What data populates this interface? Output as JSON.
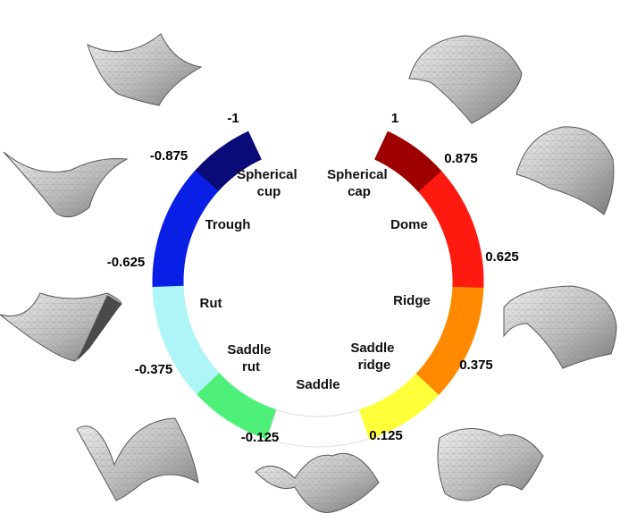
{
  "colors": {
    "spherical_cup": "#0a0a78",
    "trough": "#0a1fe6",
    "rut": "#aef5f7",
    "saddle_rut": "#4ef07a",
    "saddle": "#ffffff",
    "saddle_ridge": "#ffff3a",
    "ridge": "#ff8a00",
    "dome": "#ff1a10",
    "spherical_cap": "#9e0000"
  },
  "segments": [
    {
      "key": "spherical_cup",
      "label_lines": [
        "Spherical",
        "cup"
      ]
    },
    {
      "key": "trough",
      "label_lines": [
        "Trough"
      ]
    },
    {
      "key": "rut",
      "label_lines": [
        "Rut"
      ]
    },
    {
      "key": "saddle_rut",
      "label_lines": [
        "Saddle",
        "rut"
      ]
    },
    {
      "key": "saddle",
      "label_lines": [
        "Saddle"
      ]
    },
    {
      "key": "saddle_ridge",
      "label_lines": [
        "Saddle",
        "ridge"
      ]
    },
    {
      "key": "ridge",
      "label_lines": [
        "Ridge"
      ]
    },
    {
      "key": "dome",
      "label_lines": [
        "Dome"
      ]
    },
    {
      "key": "spherical_cap",
      "label_lines": [
        "Spherical",
        "cap"
      ]
    }
  ],
  "ticks": [
    "-1",
    "-0.875",
    "-0.625",
    "-0.375",
    "-0.125",
    "0.125",
    "0.375",
    "0.625",
    "0.875",
    "1"
  ],
  "surface_icons": [
    "cup-surface-icon",
    "trough-surface-icon",
    "rut-surface-icon",
    "saddle-rut-surface-icon",
    "saddle-surface-icon",
    "saddle-ridge-surface-icon",
    "ridge-surface-icon",
    "dome-surface-icon",
    "cap-surface-icon"
  ]
}
